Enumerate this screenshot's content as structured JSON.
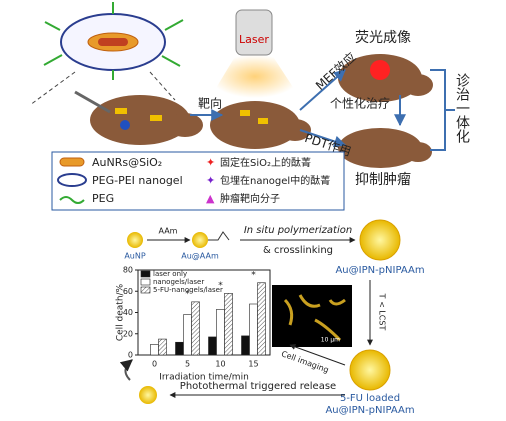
{
  "top": {
    "laser": "Laser",
    "targeting": "靶向",
    "imaging": "荧光成像",
    "mef": "MEF效应",
    "personal": "个性化治疗",
    "pdt": "PDT作用",
    "inhibit": "抑制肿瘤",
    "theranostics": "诊治一体化"
  },
  "legend": {
    "items": [
      "AuNRs@SiO₂",
      "PEG-PEI nanogel",
      "PEG",
      "固定在SiO₂上的酞菁",
      "包埋在nanogel中的酞菁",
      "肿瘤靶向分子"
    ]
  },
  "synthesis": {
    "aunp": "AuNP",
    "aam": "AAm",
    "au_aam": "Au@AAm",
    "polymerization": "In situ polymerization",
    "crosslinking": "& crosslinking",
    "product": "Au@IPN-pNIPAAm",
    "lcst": "T < LCST",
    "cell_imaging": "Cell imaging",
    "scale": "10 μm",
    "loaded": "5-FU loaded",
    "loaded_product": "Au@IPN-pNIPAAm",
    "release": "Photothermal triggered release"
  },
  "bar_chart": {
    "type": "bar",
    "xlabel": "Irradiation time/min",
    "ylabel": "Cell death/%",
    "categories": [
      "0",
      "5",
      "10",
      "15"
    ],
    "ylim": [
      0,
      80
    ],
    "yticks": [
      0,
      20,
      40,
      60,
      80
    ],
    "significance": "*",
    "series": [
      {
        "name": "laser only",
        "color": "#111111",
        "values": [
          null,
          12,
          17,
          18
        ]
      },
      {
        "name": "nanogels/laser",
        "color": "#ffffff",
        "values": [
          10,
          38,
          43,
          48
        ]
      },
      {
        "name": "5-FU-nanogels/laser",
        "color": "#cccccc",
        "values": [
          15,
          50,
          58,
          68
        ]
      }
    ]
  }
}
